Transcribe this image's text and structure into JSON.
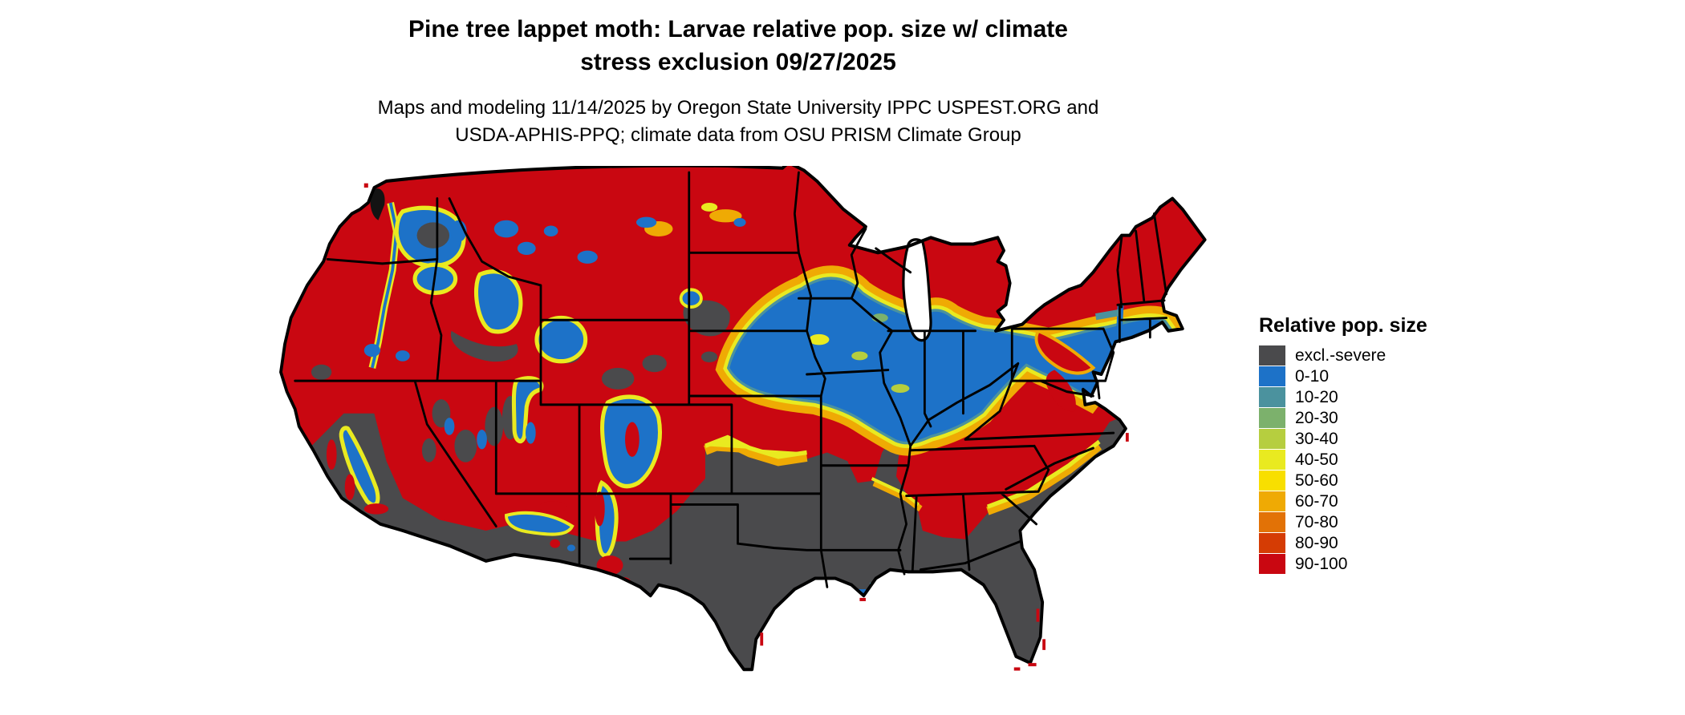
{
  "header": {
    "title_line1": "Pine tree lappet moth: Larvae relative pop. size w/ climate",
    "title_line2": "stress exclusion 09/27/2025",
    "subtitle_line1": "Maps and modeling 11/14/2025 by Oregon State University IPPC USPEST.ORG and",
    "subtitle_line2": "USDA-APHIS-PPQ; climate data from OSU PRISM Climate Group"
  },
  "legend": {
    "title": "Relative pop. size",
    "entries": [
      {
        "label": "excl.-severe",
        "color": "#4a4a4c"
      },
      {
        "label": "0-10",
        "color": "#1d72c8"
      },
      {
        "label": "10-20",
        "color": "#4b929e"
      },
      {
        "label": "20-30",
        "color": "#7cb16c"
      },
      {
        "label": "30-40",
        "color": "#b6ce3f"
      },
      {
        "label": "40-50",
        "color": "#e9ea20"
      },
      {
        "label": "50-60",
        "color": "#f8df00"
      },
      {
        "label": "60-70",
        "color": "#efaa04"
      },
      {
        "label": "70-80",
        "color": "#e27206"
      },
      {
        "label": "80-90",
        "color": "#d53c04"
      },
      {
        "label": "90-100",
        "color": "#c90711"
      }
    ]
  },
  "map": {
    "area_label": "contiguous United States",
    "palette": {
      "gray": "#4a4a4c",
      "blue": "#1d72c8",
      "teal": "#4b929e",
      "green": "#7cb16c",
      "yellowgreen": "#b6ce3f",
      "yellow": "#e9ea20",
      "gold": "#f8df00",
      "orange": "#efaa04",
      "darkorange": "#e27206",
      "redorange": "#d53c04",
      "red": "#c90711",
      "white": "#ffffff",
      "border": "#000000",
      "ink": "#131313"
    }
  }
}
